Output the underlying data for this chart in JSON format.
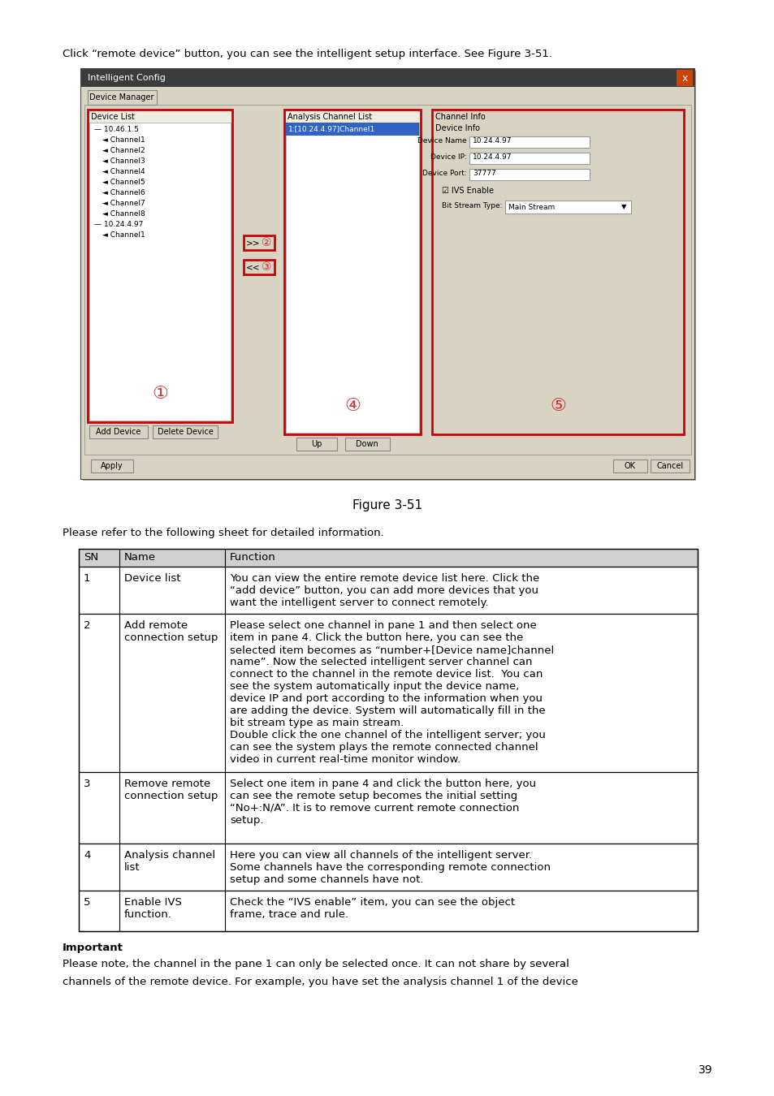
{
  "page_bg": "#ffffff",
  "top_text": "Click “remote device” button, you can see the intelligent setup interface. See Figure 3-51.",
  "figure_caption": "Figure 3-51",
  "please_refer": "Please refer to the following sheet for detailed information.",
  "table_header": [
    "SN",
    "Name",
    "Function"
  ],
  "table_rows": [
    {
      "sn": "1",
      "name": "Device list",
      "function": "You can view the entire remote device list here. Click the\n“add device” button, you can add more devices that you\nwant the intelligent server to connect remotely."
    },
    {
      "sn": "2",
      "name": "Add remote\nconnection setup",
      "function": "Please select one channel in pane 1 and then select one\nitem in pane 4. Click the button here, you can see the\nselected item becomes as “number+[Device name]channel\nname”. Now the selected intelligent server channel can\nconnect to the channel in the remote device list.  You can\nsee the system automatically input the device name,\ndevice IP and port according to the information when you\nare adding the device. System will automatically fill in the\nbit stream type as main stream.\nDouble click the one channel of the intelligent server; you\ncan see the system plays the remote connected channel\nvideo in current real-time monitor window."
    },
    {
      "sn": "3",
      "name": "Remove remote\nconnection setup",
      "function": "Select one item in pane 4 and click the button here, you\ncan see the remote setup becomes the initial setting\n“No+:N/A”. It is to remove current remote connection\nsetup."
    },
    {
      "sn": "4",
      "name": "Analysis channel\nlist",
      "function": "Here you can view all channels of the intelligent server.\nSome channels have the corresponding remote connection\nsetup and some channels have not."
    },
    {
      "sn": "5",
      "name": "Enable IVS\nfunction.",
      "function": "Check the “IVS enable” item, you can see the object\nframe, trace and rule."
    }
  ],
  "important_label": "Important",
  "important_text1": "Please note, the channel in the pane 1 can only be selected once. It can not share by several",
  "important_text2": "channels of the remote device. For example, you have set the analysis channel 1 of the device",
  "page_number": "39",
  "win_titlebar_color": "#3c3c3c",
  "win_bg": "#d4cfbe",
  "panel_bg": "#f0ede3",
  "panel_inner_bg": "#ffffff",
  "red_border": "#cc0000",
  "blue_sel": "#3163c5",
  "header_bg": "#d0d0d0"
}
